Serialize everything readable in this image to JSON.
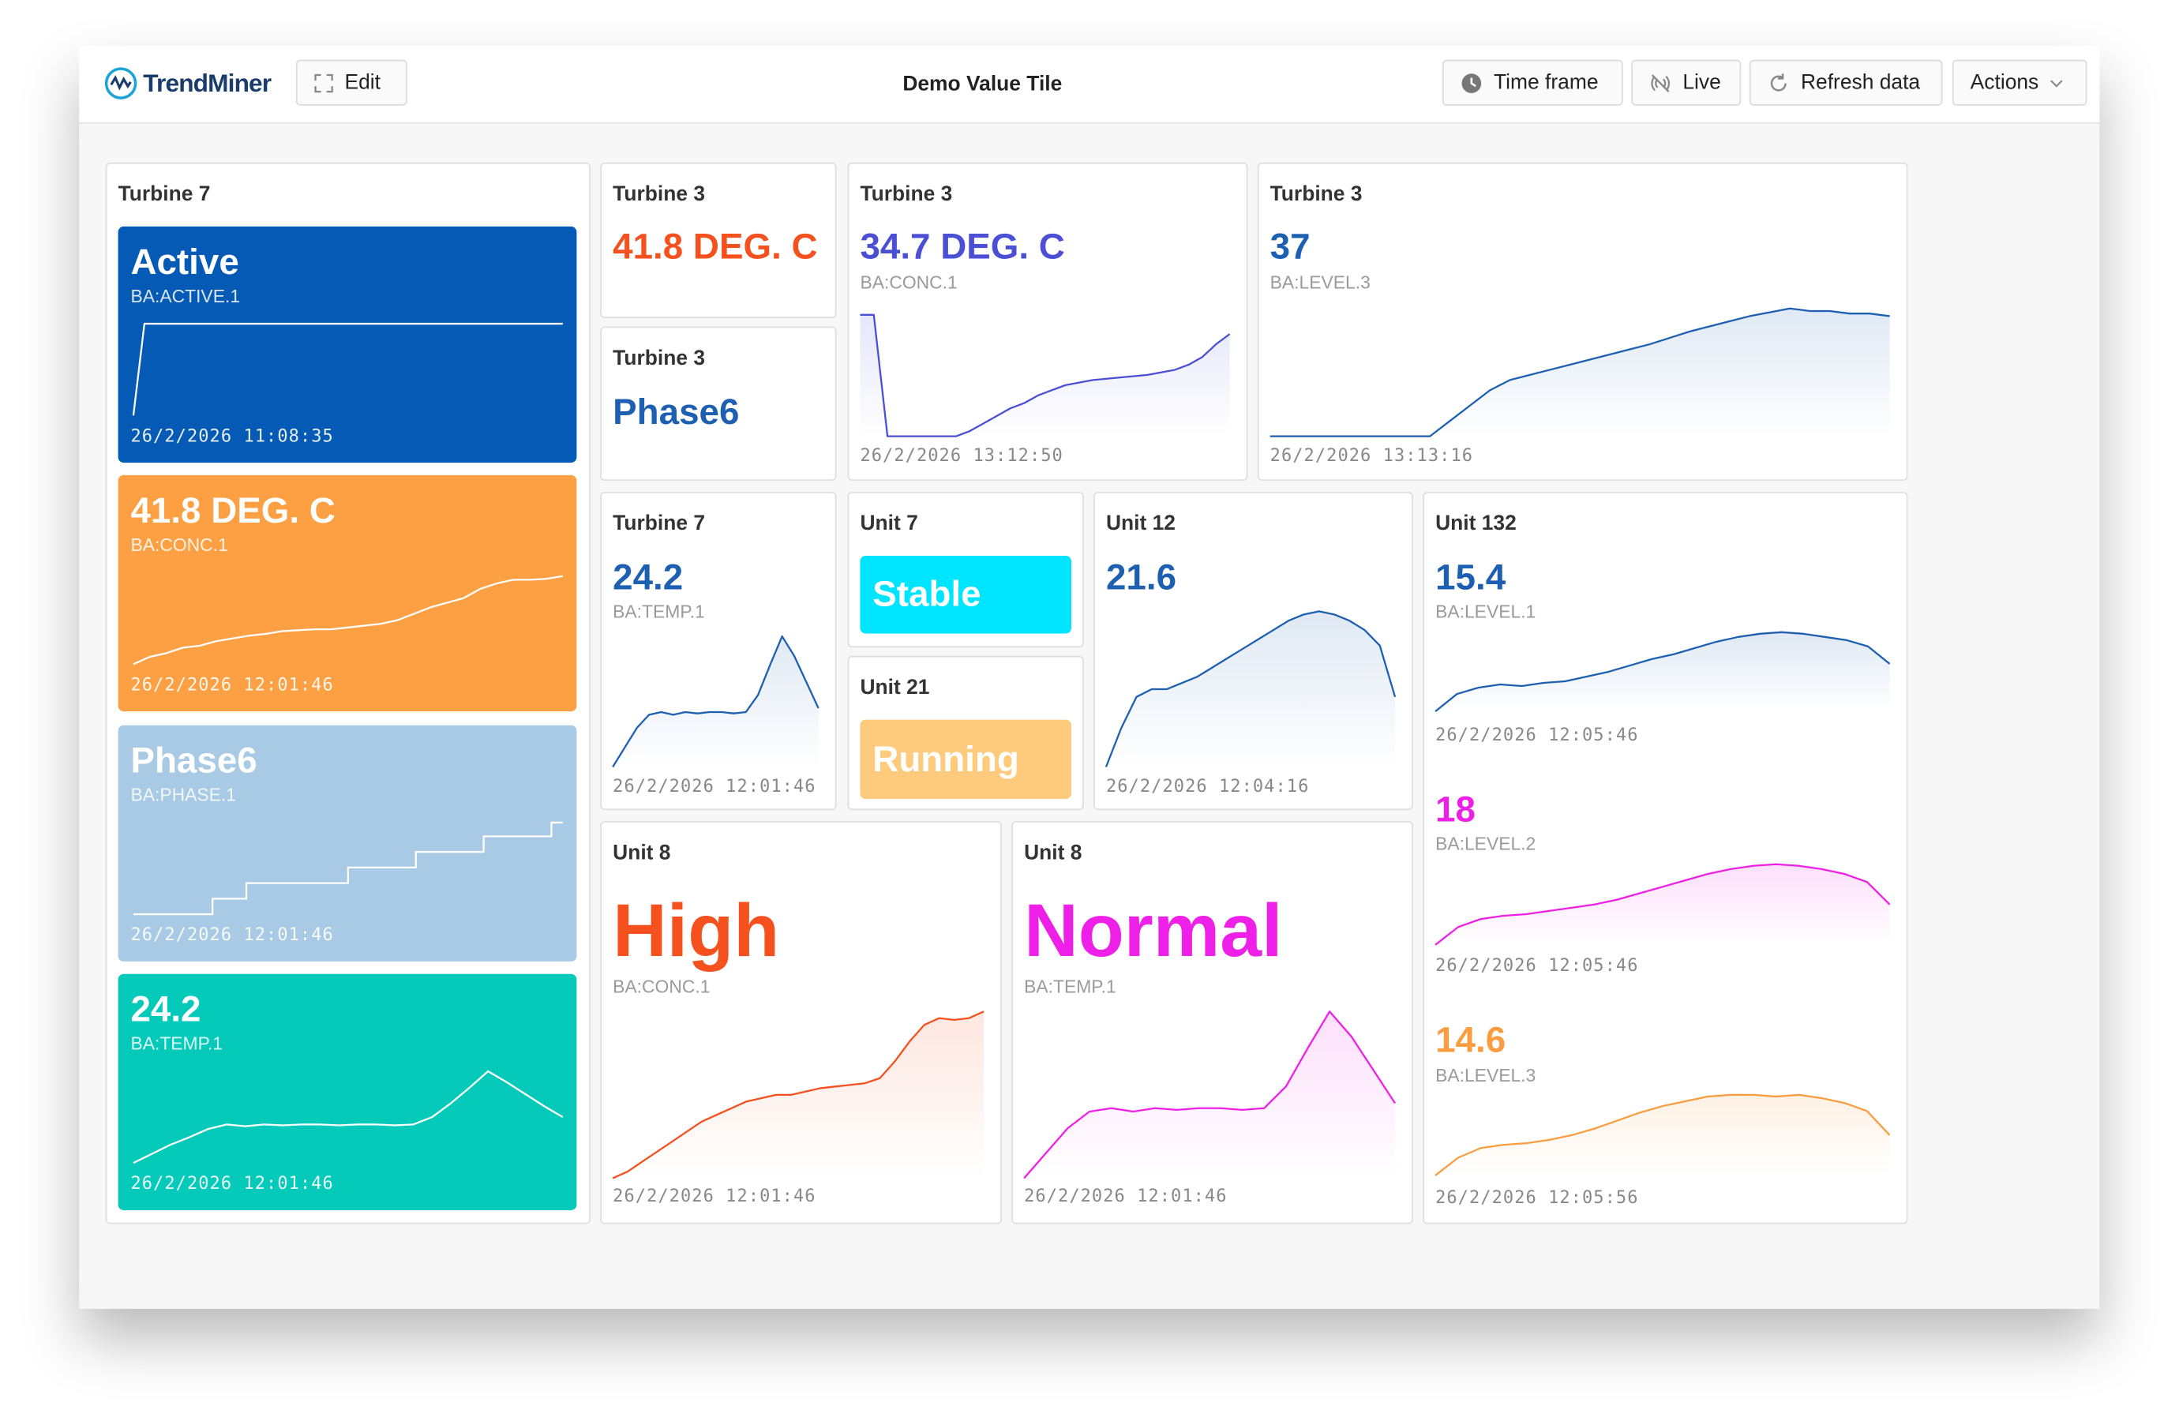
{
  "header": {
    "logo": "TrendMiner",
    "edit": "Edit",
    "title": "Demo Value Tile",
    "buttons": [
      "Time frame",
      "Live",
      "Refresh data",
      "Actions"
    ]
  },
  "tiles": [
    {
      "title": "Turbine 7",
      "style": "filled",
      "items": [
        {
          "value": "Active",
          "tag": "BA:ACTIVE.1",
          "date": "26/2/2026 11:08:35",
          "color": "#045ab5",
          "spark": {
            "values": [
              0,
              100,
              100,
              100,
              100,
              100,
              100,
              100,
              100,
              100,
              100,
              100,
              100,
              100,
              100,
              100,
              100,
              100,
              100,
              100,
              100,
              100,
              100,
              100,
              100,
              100,
              100,
              100,
              100,
              100,
              100,
              100,
              100,
              100,
              100,
              100,
              100,
              100,
              100,
              100
            ]
          }
        },
        {
          "value": "41.8 DEG. C",
          "tag": "BA:CONC.1",
          "date": "26/2/2026 12:01:46",
          "color": "#fca043",
          "spark": {
            "values": [
              0,
              8,
              12,
              18,
              20,
              25,
              28,
              31,
              33,
              36,
              37,
              38,
              38,
              40,
              42,
              44,
              48,
              55,
              62,
              67,
              72,
              82,
              88,
              92,
              92,
              93,
              96
            ]
          }
        },
        {
          "value": "Phase6",
          "tag": "BA:PHASE.1",
          "date": "26/2/2026 12:01:46",
          "color": "#a8cae4",
          "spark": {
            "step": true,
            "values": [
              0,
              0,
              0,
              0,
              0,
              0,
              0,
              17,
              17,
              17,
              34,
              34,
              34,
              34,
              34,
              34,
              34,
              34,
              34,
              51,
              51,
              51,
              51,
              51,
              51,
              68,
              68,
              68,
              68,
              68,
              68,
              85,
              85,
              85,
              85,
              85,
              85,
              100,
              100
            ]
          }
        },
        {
          "value": "24.2",
          "tag": "BA:TEMP.1",
          "date": "26/2/2026 12:01:46",
          "color": "#05c9b9",
          "spark": {
            "values": [
              0,
              10,
              20,
              28,
              37,
              42,
              40,
              42,
              41,
              42,
              42,
              41,
              42,
              42,
              41,
              42,
              50,
              65,
              82,
              100,
              88,
              75,
              62,
              50
            ]
          }
        }
      ]
    },
    {
      "title": "Turbine 3",
      "style": "plain",
      "items": [
        {
          "value": "41.8 DEG. C",
          "color": "#f4511e"
        }
      ]
    },
    {
      "title": "Turbine 3",
      "style": "plain",
      "items": [
        {
          "value": "Phase6",
          "color": "#1d5fb0"
        }
      ]
    },
    {
      "title": "Turbine 3",
      "style": "plain",
      "items": [
        {
          "value": "34.7 DEG. C",
          "tag": "BA:CONC.1",
          "date": "26/2/2026 13:12:50",
          "color": "#4a4fd4",
          "spark": {
            "area": true,
            "values": [
              95,
              95,
              0,
              0,
              0,
              0,
              0,
              0,
              4,
              10,
              16,
              22,
              26,
              32,
              36,
              40,
              42,
              44,
              45,
              46,
              47,
              48,
              50,
              52,
              56,
              62,
              72,
              80
            ]
          }
        }
      ]
    },
    {
      "title": "Turbine 3",
      "style": "plain",
      "items": [
        {
          "value": 37,
          "tag": "BA:LEVEL.3",
          "date": "26/2/2026 13:13:16",
          "color": "#1d5fb0",
          "spark": {
            "area": true,
            "values": [
              0,
              0,
              0,
              0,
              0,
              0,
              0,
              0,
              0,
              12,
              24,
              36,
              44,
              48,
              52,
              56,
              60,
              64,
              68,
              72,
              77,
              82,
              86,
              90,
              94,
              97,
              100,
              98,
              98,
              96,
              96,
              94
            ]
          }
        }
      ]
    },
    {
      "title": "Turbine 7",
      "style": "plain",
      "items": [
        {
          "value": 24.2,
          "tag": "BA:TEMP.1",
          "date": "26/2/2026 12:01:46",
          "color": "#1d5fb0",
          "spark": {
            "area": true,
            "values": [
              0,
              15,
              30,
              40,
              42,
              40,
              42,
              41,
              42,
              42,
              41,
              42,
              55,
              78,
              100,
              85,
              65,
              45
            ]
          }
        }
      ]
    },
    {
      "title": "Unit 7",
      "style": "badge",
      "items": [
        {
          "value": "Stable",
          "color": "#00e5ff"
        }
      ]
    },
    {
      "title": "Unit 21",
      "style": "badge",
      "items": [
        {
          "value": "Running",
          "color": "#fecb7d"
        }
      ]
    },
    {
      "title": "Unit 12",
      "style": "plain",
      "items": [
        {
          "value": 21.6,
          "date": "26/2/2026 12:04:16",
          "color": "#1d5fb0",
          "spark": {
            "area": true,
            "values": [
              0,
              25,
              45,
              50,
              50,
              54,
              58,
              64,
              70,
              76,
              82,
              88,
              94,
              98,
              100,
              98,
              94,
              88,
              78,
              45
            ]
          }
        }
      ]
    },
    {
      "title": "Unit 132",
      "style": "plain",
      "items": [
        {
          "value": 15.4,
          "tag": "BA:LEVEL.1",
          "date": "26/2/2026 12:05:46",
          "color": "#1d5fb0",
          "spark": {
            "area": true,
            "values": [
              0,
              22,
              30,
              34,
              32,
              36,
              38,
              44,
              50,
              58,
              66,
              72,
              80,
              88,
              94,
              98,
              100,
              98,
              94,
              90,
              82,
              60
            ]
          }
        },
        {
          "value": 18,
          "tag": "BA:LEVEL.2",
          "date": "26/2/2026 12:05:46",
          "color": "#ee1fe6",
          "spark": {
            "area": true,
            "values": [
              0,
              22,
              32,
              36,
              38,
              42,
              46,
              50,
              56,
              64,
              72,
              80,
              88,
              94,
              98,
              100,
              98,
              94,
              88,
              78,
              50
            ]
          }
        },
        {
          "value": 14.6,
          "tag": "BA:LEVEL.3",
          "date": "26/2/2026 12:05:56",
          "color": "#f99d40",
          "spark": {
            "area": true,
            "values": [
              0,
              22,
              34,
              38,
              40,
              44,
              50,
              58,
              68,
              78,
              86,
              92,
              98,
              100,
              100,
              98,
              100,
              96,
              90,
              80,
              50
            ]
          }
        }
      ]
    },
    {
      "title": "Unit 8",
      "style": "plain",
      "items": [
        {
          "value": "High",
          "tag": "BA:CONC.1",
          "date": "26/2/2026 12:01:46",
          "color": "#f4511e",
          "spark": {
            "area": true,
            "values": [
              0,
              4,
              10,
              16,
              22,
              28,
              34,
              38,
              42,
              46,
              48,
              50,
              50,
              52,
              54,
              55,
              56,
              57,
              60,
              70,
              82,
              92,
              96,
              95,
              96,
              100
            ]
          }
        }
      ]
    },
    {
      "title": "Unit 8",
      "style": "plain",
      "items": [
        {
          "value": "Normal",
          "tag": "BA:TEMP.1",
          "date": "26/2/2026 12:01:46",
          "color": "#ee1fe6",
          "spark": {
            "area": true,
            "values": [
              0,
              15,
              30,
              40,
              42,
              40,
              42,
              41,
              42,
              42,
              41,
              42,
              55,
              78,
              100,
              85,
              65,
              45
            ]
          }
        }
      ]
    }
  ]
}
